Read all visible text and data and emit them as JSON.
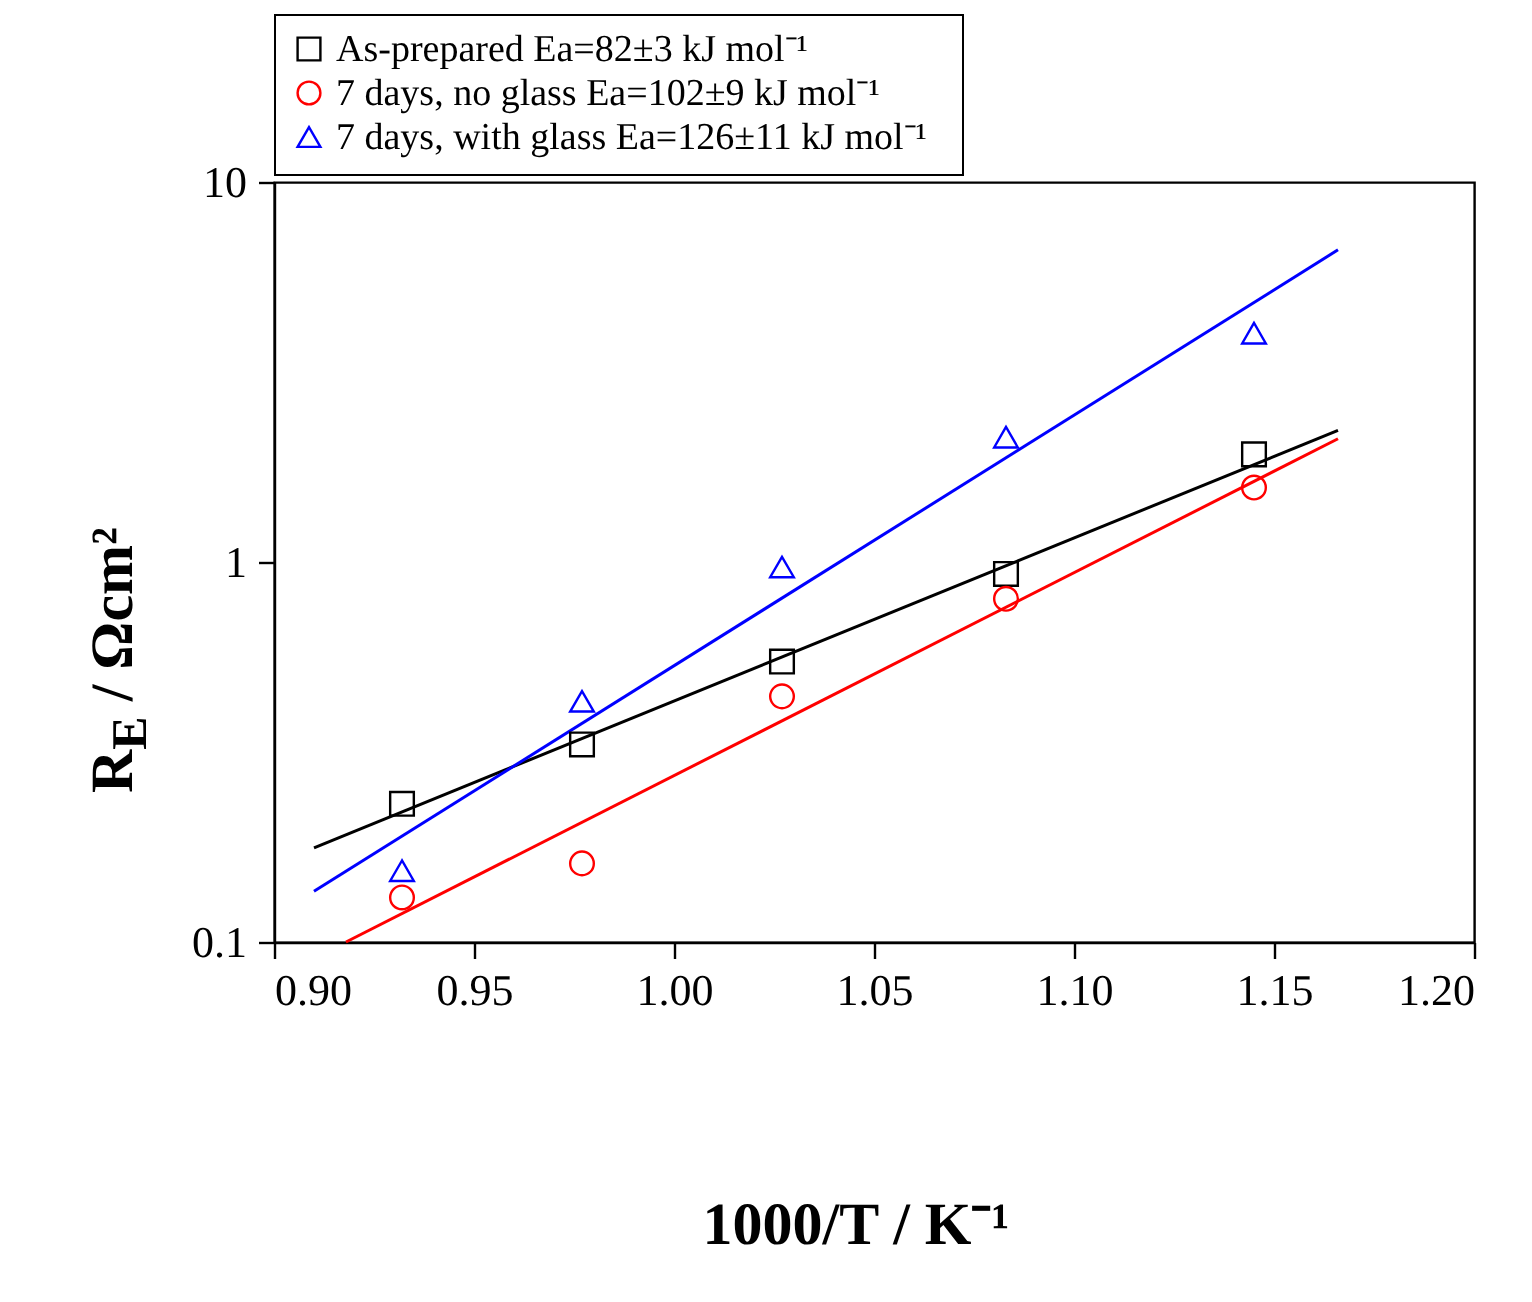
{
  "chart_data": {
    "type": "scatter",
    "xlabel": "1000/T / K⁻¹",
    "ylabel": "R$_{E}$ / Ωcm²",
    "log": "y",
    "grid": false,
    "legend": "top",
    "xlim": [
      0.9,
      1.2
    ],
    "ylim": [
      0.1,
      10
    ],
    "xticks": [
      {
        "value": 0.9,
        "label": "0.90"
      },
      {
        "value": 0.95,
        "label": "0.95"
      },
      {
        "value": 1.0,
        "label": "1.00"
      },
      {
        "value": 1.05,
        "label": "1.05"
      },
      {
        "value": 1.1,
        "label": "1.10"
      },
      {
        "value": 1.15,
        "label": "1.15"
      },
      {
        "value": 1.2,
        "label": "1.20"
      }
    ],
    "yticks": [
      0.1,
      1,
      10
    ],
    "x": [
      0.932,
      0.977,
      1.027,
      1.083,
      1.145
    ],
    "series": [
      {
        "name": "As-prepared     Ea=82±3 kJ mol⁻¹",
        "color": "#000000",
        "marker": "square",
        "values": [
          0.231,
          0.331,
          0.547,
          0.93,
          1.92
        ]
      },
      {
        "name": "7 days, no glass     Ea=102±9 kJ mol⁻¹",
        "color": "#ff0000",
        "marker": "circle",
        "values": [
          0.131,
          0.161,
          0.443,
          0.8,
          1.57
        ]
      },
      {
        "name": "7 days, with glass   Ea=126±11 kJ mol⁻¹",
        "color": "#0000ff",
        "marker": "triangle",
        "values": [
          0.154,
          0.43,
          0.97,
          2.13,
          4.0
        ]
      },
      {
        "type": "line",
        "color": "#000000",
        "x": [
          0.91,
          1.166
        ],
        "values": [
          0.177,
          2.22
        ]
      },
      {
        "type": "line",
        "color": "#ff0000",
        "x": [
          0.918,
          1.166
        ],
        "values": [
          0.1,
          2.11
        ]
      },
      {
        "type": "line",
        "color": "#0000ff",
        "x": [
          0.91,
          1.166
        ],
        "values": [
          0.136,
          6.63
        ]
      }
    ]
  }
}
